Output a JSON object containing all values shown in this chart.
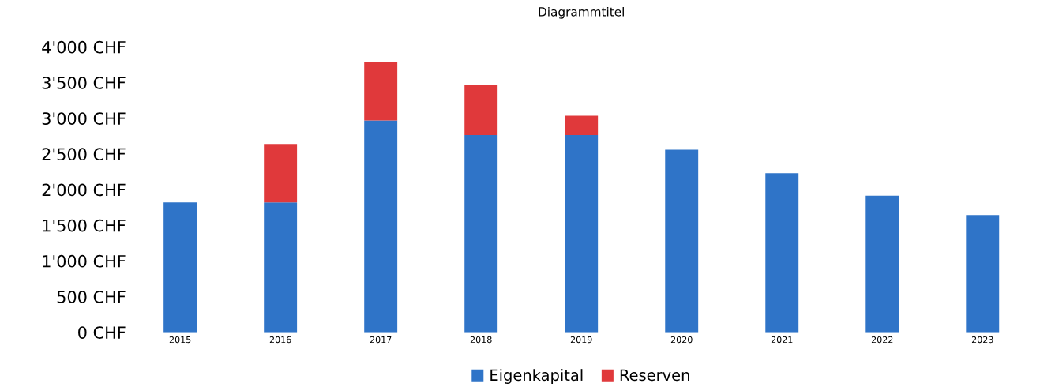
{
  "chart_data": {
    "type": "bar",
    "title": "Diagrammtitel",
    "stacked": true,
    "categories": [
      "2015",
      "2016",
      "2017",
      "2018",
      "2019",
      "2020",
      "2021",
      "2022",
      "2023"
    ],
    "series": [
      {
        "name": "Eigenkapital",
        "color": "#2f74c8",
        "values": [
          1820,
          1820,
          2970,
          2765,
          2765,
          2560,
          2230,
          1915,
          1645
        ]
      },
      {
        "name": "Reserven",
        "color": "#e0393b",
        "values": [
          null,
          820,
          815,
          700,
          270,
          null,
          null,
          null,
          null
        ]
      }
    ],
    "ylim": [
      0,
      4000
    ],
    "yticks": [
      {
        "value": 0,
        "label": "0 CHF"
      },
      {
        "value": 500,
        "label": "500 CHF"
      },
      {
        "value": 1000,
        "label": "1'000 CHF"
      },
      {
        "value": 1500,
        "label": "1'500 CHF"
      },
      {
        "value": 2000,
        "label": "2'000 CHF"
      },
      {
        "value": 2500,
        "label": "2'500 CHF"
      },
      {
        "value": 3000,
        "label": "3'000 CHF"
      },
      {
        "value": 3500,
        "label": "3'500 CHF"
      },
      {
        "value": 4000,
        "label": "4'000 CHF"
      }
    ],
    "grid": false,
    "legend": "bottom"
  }
}
